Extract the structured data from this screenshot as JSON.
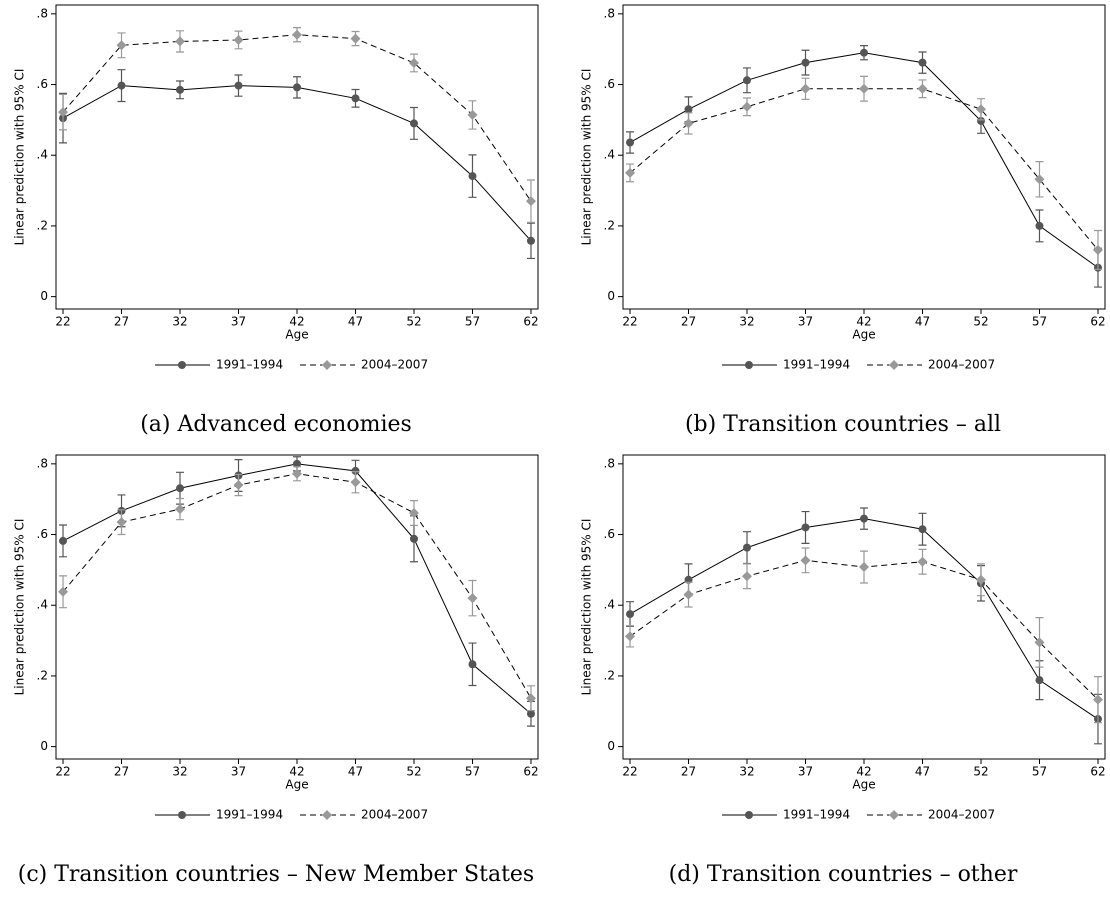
{
  "chart_data": [
    {
      "type": "line",
      "caption": "(a) Advanced economies",
      "x_label": "Age",
      "y_label": "Linear prediction with 95% CI",
      "x": [
        22,
        27,
        32,
        37,
        42,
        47,
        52,
        57,
        62
      ],
      "series": [
        {
          "name": "1991–1994",
          "color": "#555555",
          "line_style": "solid",
          "marker": "circle",
          "values": [
            0.505,
            0.597,
            0.585,
            0.597,
            0.592,
            0.561,
            0.49,
            0.341,
            0.158
          ],
          "errors": [
            0.07,
            0.045,
            0.025,
            0.03,
            0.03,
            0.025,
            0.045,
            0.06,
            0.05
          ]
        },
        {
          "name": "2004–2007",
          "color": "#999999",
          "line_style": "dashed",
          "marker": "diamond",
          "values": [
            0.522,
            0.711,
            0.722,
            0.726,
            0.741,
            0.73,
            0.661,
            0.514,
            0.27
          ],
          "errors": [
            0.05,
            0.035,
            0.03,
            0.025,
            0.02,
            0.02,
            0.025,
            0.04,
            0.06
          ]
        }
      ],
      "xlim": [
        21.4,
        62.6
      ],
      "xticks": [
        22,
        27,
        32,
        37,
        42,
        47,
        52,
        57,
        62
      ],
      "ylim": [
        -0.035,
        0.825
      ],
      "yticks": [
        0,
        {
          "value": 0.2,
          "label": ".2"
        },
        {
          "value": 0.4,
          "label": ".4"
        },
        {
          "value": 0.6,
          "label": ".6"
        },
        {
          "value": 0.8,
          "label": ".8"
        }
      ],
      "grid": false,
      "legend": "bottom"
    },
    {
      "type": "line",
      "caption": "(b) Transition countries – all",
      "x_label": "Age",
      "y_label": "Linear prediction with 95% CI",
      "x": [
        22,
        27,
        32,
        37,
        42,
        47,
        52,
        57,
        62
      ],
      "series": [
        {
          "name": "1991–1994",
          "color": "#555555",
          "line_style": "solid",
          "marker": "circle",
          "values": [
            0.436,
            0.53,
            0.612,
            0.662,
            0.69,
            0.662,
            0.497,
            0.2,
            0.082
          ],
          "errors": [
            0.03,
            0.035,
            0.035,
            0.035,
            0.02,
            0.03,
            0.035,
            0.045,
            0.055
          ]
        },
        {
          "name": "2004–2007",
          "color": "#999999",
          "line_style": "dashed",
          "marker": "diamond",
          "values": [
            0.35,
            0.49,
            0.537,
            0.588,
            0.588,
            0.588,
            0.53,
            0.332,
            0.132
          ],
          "errors": [
            0.025,
            0.03,
            0.025,
            0.03,
            0.035,
            0.025,
            0.03,
            0.05,
            0.055
          ]
        }
      ],
      "xlim": [
        21.4,
        62.6
      ],
      "xticks": [
        22,
        27,
        32,
        37,
        42,
        47,
        52,
        57,
        62
      ],
      "ylim": [
        -0.035,
        0.825
      ],
      "yticks": [
        0,
        {
          "value": 0.2,
          "label": ".2"
        },
        {
          "value": 0.4,
          "label": ".4"
        },
        {
          "value": 0.6,
          "label": ".6"
        },
        {
          "value": 0.8,
          "label": ".8"
        }
      ],
      "grid": false,
      "legend": "bottom"
    },
    {
      "type": "line",
      "caption": "(c) Transition countries – New Member States",
      "x_label": "Age",
      "y_label": "Linear prediction with 95% CI",
      "x": [
        22,
        27,
        32,
        37,
        42,
        47,
        52,
        57,
        62
      ],
      "series": [
        {
          "name": "1991–1994",
          "color": "#555555",
          "line_style": "solid",
          "marker": "circle",
          "values": [
            0.582,
            0.667,
            0.731,
            0.767,
            0.8,
            0.78,
            0.588,
            0.233,
            0.093
          ],
          "errors": [
            0.045,
            0.045,
            0.045,
            0.045,
            0.02,
            0.03,
            0.065,
            0.06,
            0.035
          ]
        },
        {
          "name": "2004–2007",
          "color": "#999999",
          "line_style": "dashed",
          "marker": "diamond",
          "values": [
            0.438,
            0.635,
            0.672,
            0.74,
            0.772,
            0.748,
            0.661,
            0.42,
            0.137
          ],
          "errors": [
            0.045,
            0.035,
            0.03,
            0.03,
            0.02,
            0.03,
            0.035,
            0.05,
            0.035
          ]
        }
      ],
      "xlim": [
        21.4,
        62.6
      ],
      "xticks": [
        22,
        27,
        32,
        37,
        42,
        47,
        52,
        57,
        62
      ],
      "ylim": [
        -0.035,
        0.825
      ],
      "yticks": [
        0,
        {
          "value": 0.2,
          "label": ".2"
        },
        {
          "value": 0.4,
          "label": ".4"
        },
        {
          "value": 0.6,
          "label": ".6"
        },
        {
          "value": 0.8,
          "label": ".8"
        }
      ],
      "grid": false,
      "legend": "bottom"
    },
    {
      "type": "line",
      "caption": "(d) Transition countries – other",
      "x_label": "Age",
      "y_label": "Linear prediction with 95% CI",
      "x": [
        22,
        27,
        32,
        37,
        42,
        47,
        52,
        57,
        62
      ],
      "series": [
        {
          "name": "1991–1994",
          "color": "#555555",
          "line_style": "solid",
          "marker": "circle",
          "values": [
            0.375,
            0.472,
            0.563,
            0.62,
            0.645,
            0.615,
            0.462,
            0.188,
            0.078
          ],
          "errors": [
            0.035,
            0.045,
            0.045,
            0.045,
            0.03,
            0.045,
            0.05,
            0.055,
            0.07
          ]
        },
        {
          "name": "2004–2007",
          "color": "#999999",
          "line_style": "dashed",
          "marker": "diamond",
          "values": [
            0.312,
            0.43,
            0.482,
            0.527,
            0.508,
            0.523,
            0.472,
            0.295,
            0.133
          ],
          "errors": [
            0.03,
            0.035,
            0.035,
            0.035,
            0.045,
            0.035,
            0.045,
            0.07,
            0.065
          ]
        }
      ],
      "xlim": [
        21.4,
        62.6
      ],
      "xticks": [
        22,
        27,
        32,
        37,
        42,
        47,
        52,
        57,
        62
      ],
      "ylim": [
        -0.035,
        0.825
      ],
      "yticks": [
        0,
        {
          "value": 0.2,
          "label": ".2"
        },
        {
          "value": 0.4,
          "label": ".4"
        },
        {
          "value": 0.6,
          "label": ".6"
        },
        {
          "value": 0.8,
          "label": ".8"
        }
      ],
      "grid": false,
      "legend": "bottom"
    }
  ]
}
